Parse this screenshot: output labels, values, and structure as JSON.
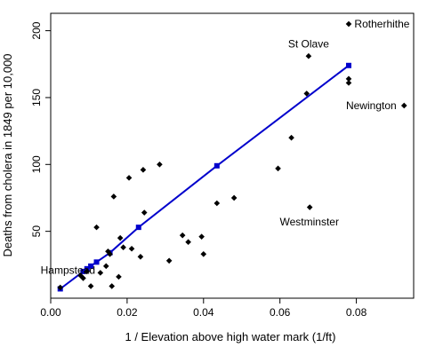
{
  "chart_data": {
    "type": "scatter",
    "title": "",
    "xlabel": "1 / Elevation above high water mark (1/ft)",
    "ylabel": "Deaths from cholera in 1849 per 10,000",
    "xlim": [
      0,
      0.095
    ],
    "ylim": [
      0,
      213
    ],
    "x_ticks": [
      0.0,
      0.02,
      0.04,
      0.06,
      0.08
    ],
    "x_tick_labels": [
      "0.00",
      "0.02",
      "0.04",
      "0.06",
      "0.08"
    ],
    "y_ticks": [
      50,
      100,
      150,
      200
    ],
    "y_tick_labels": [
      "50",
      "100",
      "150",
      "200"
    ],
    "grid": false,
    "legend": "none",
    "colors": {
      "points": "#000000",
      "fit": "#0000cc"
    },
    "series": [
      {
        "marker": "diamond",
        "points": [
          [
            0.0025,
            8
          ],
          [
            0.0078,
            17
          ],
          [
            0.0085,
            15
          ],
          [
            0.0095,
            20
          ],
          [
            0.0105,
            9
          ],
          [
            0.012,
            53
          ],
          [
            0.013,
            19
          ],
          [
            0.0145,
            24
          ],
          [
            0.015,
            35
          ],
          [
            0.0155,
            33
          ],
          [
            0.016,
            9
          ],
          [
            0.0165,
            76
          ],
          [
            0.0178,
            16
          ],
          [
            0.0182,
            45
          ],
          [
            0.019,
            38
          ],
          [
            0.0205,
            90
          ],
          [
            0.0212,
            37
          ],
          [
            0.0235,
            31
          ],
          [
            0.0242,
            96
          ],
          [
            0.0245,
            64
          ],
          [
            0.0285,
            100
          ],
          [
            0.031,
            28
          ],
          [
            0.0345,
            47
          ],
          [
            0.036,
            42
          ],
          [
            0.0395,
            46
          ],
          [
            0.04,
            33
          ],
          [
            0.0435,
            71
          ],
          [
            0.048,
            75
          ],
          [
            0.0595,
            97
          ],
          [
            0.063,
            120
          ],
          [
            0.067,
            153
          ],
          [
            0.0675,
            181
          ],
          [
            0.0678,
            68
          ],
          [
            0.078,
            205
          ],
          [
            0.078,
            164
          ],
          [
            0.078,
            161
          ],
          [
            0.0925,
            144
          ]
        ]
      },
      {
        "name": "",
        "type": "line",
        "marker": "square",
        "points": [
          [
            0.0025,
            7
          ],
          [
            0.0085,
            20
          ],
          [
            0.0095,
            22
          ],
          [
            0.0105,
            24
          ],
          [
            0.012,
            27
          ],
          [
            0.0155,
            34
          ],
          [
            0.023,
            53
          ],
          [
            0.0435,
            99
          ],
          [
            0.078,
            174
          ]
        ]
      }
    ],
    "annotations": [
      {
        "text": "Rotherhithe",
        "x": 0.0795,
        "y": 205,
        "anchor": "start"
      },
      {
        "text": "St Olave",
        "x": 0.0675,
        "y": 190,
        "anchor": "middle"
      },
      {
        "text": "Newington",
        "x": 0.0905,
        "y": 144,
        "anchor": "end"
      },
      {
        "text": "Westminster",
        "x": 0.0677,
        "y": 57,
        "anchor": "middle"
      },
      {
        "text": "Hampstead",
        "x": 0.0045,
        "y": 21,
        "anchor": "middle"
      }
    ]
  }
}
